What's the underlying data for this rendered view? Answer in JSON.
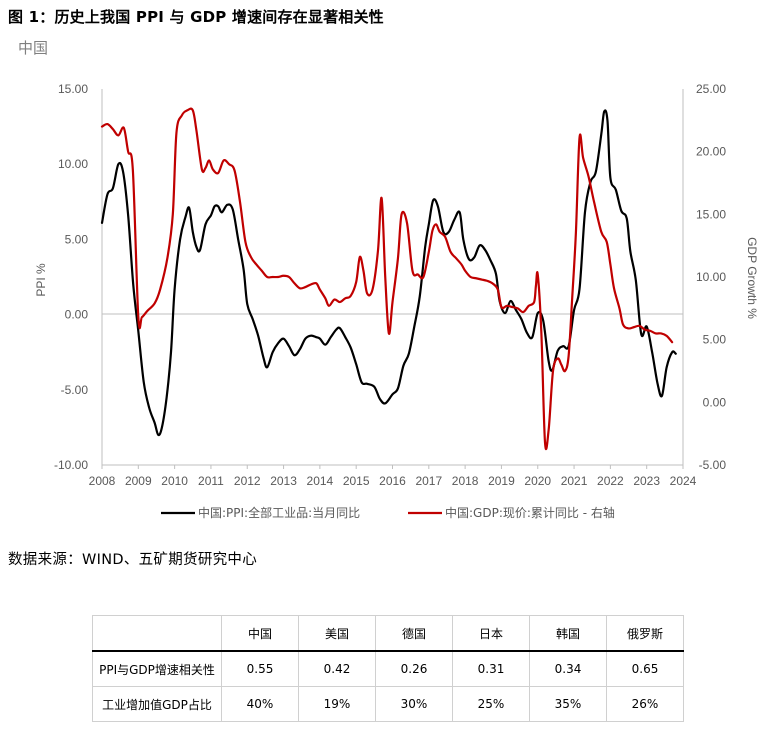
{
  "figure_title": "图 1：历史上我国 PPI 与 GDP 增速间存在显著相关性",
  "source_note": "数据来源：WIND、五矿期货研究中心",
  "chart_data": {
    "type": "line",
    "subtitle": "中国",
    "ylabel_left": "PPI %",
    "ylabel_right": "GDP Growth %",
    "ylim_left": [
      -10,
      15
    ],
    "ylim_right": [
      -5,
      25
    ],
    "y_ticks_left": [
      "15.00",
      "10.00",
      "5.00",
      "0.00",
      "-5.00",
      "-10.00"
    ],
    "y_ticks_right": [
      "25.00",
      "20.00",
      "15.00",
      "10.00",
      "5.00",
      "0.00",
      "-5.00"
    ],
    "x_ticks": [
      "2008",
      "2009",
      "2010",
      "2011",
      "2012",
      "2013",
      "2014",
      "2015",
      "2016",
      "2017",
      "2018",
      "2019",
      "2020",
      "2021",
      "2022",
      "2023",
      "2024"
    ],
    "legend_position": "bottom",
    "series": [
      {
        "name": "中国:PPI:全部工业品:当月同比",
        "axis": "left",
        "color": "#000000",
        "points": [
          [
            2008.0,
            6.1
          ],
          [
            2008.15,
            8.0
          ],
          [
            2008.3,
            8.4
          ],
          [
            2008.45,
            10.0
          ],
          [
            2008.58,
            9.5
          ],
          [
            2008.72,
            6.6
          ],
          [
            2008.86,
            2.0
          ],
          [
            2009.0,
            -1.1
          ],
          [
            2009.15,
            -4.5
          ],
          [
            2009.3,
            -6.2
          ],
          [
            2009.45,
            -7.2
          ],
          [
            2009.55,
            -8.0
          ],
          [
            2009.65,
            -7.5
          ],
          [
            2009.78,
            -5.5
          ],
          [
            2009.9,
            -2.5
          ],
          [
            2010.0,
            1.7
          ],
          [
            2010.15,
            5.0
          ],
          [
            2010.3,
            6.5
          ],
          [
            2010.4,
            7.1
          ],
          [
            2010.5,
            5.5
          ],
          [
            2010.6,
            4.5
          ],
          [
            2010.7,
            4.3
          ],
          [
            2010.85,
            6.0
          ],
          [
            2011.0,
            6.6
          ],
          [
            2011.1,
            7.2
          ],
          [
            2011.2,
            7.2
          ],
          [
            2011.3,
            6.8
          ],
          [
            2011.45,
            7.3
          ],
          [
            2011.6,
            7.0
          ],
          [
            2011.75,
            5.0
          ],
          [
            2011.9,
            3.0
          ],
          [
            2012.0,
            0.7
          ],
          [
            2012.15,
            -0.3
          ],
          [
            2012.3,
            -1.4
          ],
          [
            2012.45,
            -2.9
          ],
          [
            2012.55,
            -3.5
          ],
          [
            2012.7,
            -2.5
          ],
          [
            2012.85,
            -1.9
          ],
          [
            2013.0,
            -1.6
          ],
          [
            2013.15,
            -2.1
          ],
          [
            2013.3,
            -2.7
          ],
          [
            2013.45,
            -2.3
          ],
          [
            2013.6,
            -1.6
          ],
          [
            2013.75,
            -1.4
          ],
          [
            2013.9,
            -1.5
          ],
          [
            2014.0,
            -1.6
          ],
          [
            2014.15,
            -2.0
          ],
          [
            2014.3,
            -1.5
          ],
          [
            2014.45,
            -1.0
          ],
          [
            2014.55,
            -0.9
          ],
          [
            2014.7,
            -1.5
          ],
          [
            2014.85,
            -2.2
          ],
          [
            2015.0,
            -3.3
          ],
          [
            2015.15,
            -4.5
          ],
          [
            2015.3,
            -4.6
          ],
          [
            2015.5,
            -4.8
          ],
          [
            2015.65,
            -5.6
          ],
          [
            2015.8,
            -5.9
          ],
          [
            2016.0,
            -5.3
          ],
          [
            2016.15,
            -4.9
          ],
          [
            2016.3,
            -3.4
          ],
          [
            2016.45,
            -2.6
          ],
          [
            2016.6,
            -0.8
          ],
          [
            2016.75,
            1.2
          ],
          [
            2016.9,
            4.5
          ],
          [
            2017.0,
            6.0
          ],
          [
            2017.12,
            7.6
          ],
          [
            2017.25,
            7.2
          ],
          [
            2017.4,
            5.5
          ],
          [
            2017.55,
            5.5
          ],
          [
            2017.7,
            6.3
          ],
          [
            2017.85,
            6.8
          ],
          [
            2017.95,
            5.0
          ],
          [
            2018.1,
            3.7
          ],
          [
            2018.25,
            3.8
          ],
          [
            2018.4,
            4.6
          ],
          [
            2018.55,
            4.3
          ],
          [
            2018.7,
            3.6
          ],
          [
            2018.85,
            2.7
          ],
          [
            2018.95,
            0.9
          ],
          [
            2019.1,
            0.1
          ],
          [
            2019.25,
            0.9
          ],
          [
            2019.4,
            0.3
          ],
          [
            2019.55,
            -0.3
          ],
          [
            2019.7,
            -1.2
          ],
          [
            2019.85,
            -1.5
          ],
          [
            2020.0,
            0.1
          ],
          [
            2020.15,
            -0.4
          ],
          [
            2020.3,
            -3.1
          ],
          [
            2020.4,
            -3.7
          ],
          [
            2020.55,
            -2.4
          ],
          [
            2020.7,
            -2.1
          ],
          [
            2020.85,
            -2.1
          ],
          [
            2021.0,
            0.3
          ],
          [
            2021.15,
            1.7
          ],
          [
            2021.3,
            6.8
          ],
          [
            2021.45,
            8.8
          ],
          [
            2021.6,
            9.5
          ],
          [
            2021.75,
            12.0
          ],
          [
            2021.83,
            13.5
          ],
          [
            2021.92,
            12.9
          ],
          [
            2022.0,
            9.1
          ],
          [
            2022.15,
            8.3
          ],
          [
            2022.3,
            6.9
          ],
          [
            2022.45,
            6.4
          ],
          [
            2022.55,
            4.2
          ],
          [
            2022.7,
            2.3
          ],
          [
            2022.85,
            -1.3
          ],
          [
            2023.0,
            -0.8
          ],
          [
            2023.15,
            -2.5
          ],
          [
            2023.3,
            -4.6
          ],
          [
            2023.42,
            -5.4
          ],
          [
            2023.55,
            -3.5
          ],
          [
            2023.7,
            -2.5
          ],
          [
            2023.8,
            -2.6
          ]
        ]
      },
      {
        "name": "中国:GDP:现价:累计同比 - 右轴",
        "axis": "right",
        "color": "#c00000",
        "points": [
          [
            2008.0,
            22.0
          ],
          [
            2008.15,
            22.2
          ],
          [
            2008.3,
            21.8
          ],
          [
            2008.45,
            21.3
          ],
          [
            2008.6,
            21.9
          ],
          [
            2008.72,
            20.0
          ],
          [
            2008.85,
            18.5
          ],
          [
            2009.0,
            6.8
          ],
          [
            2009.1,
            6.8
          ],
          [
            2009.25,
            7.3
          ],
          [
            2009.45,
            7.9
          ],
          [
            2009.6,
            9.0
          ],
          [
            2009.8,
            11.5
          ],
          [
            2009.95,
            15.0
          ],
          [
            2010.05,
            21.5
          ],
          [
            2010.2,
            22.9
          ],
          [
            2010.35,
            23.3
          ],
          [
            2010.5,
            23.3
          ],
          [
            2010.6,
            21.7
          ],
          [
            2010.75,
            18.6
          ],
          [
            2010.85,
            18.7
          ],
          [
            2010.95,
            19.3
          ],
          [
            2011.05,
            18.6
          ],
          [
            2011.2,
            18.3
          ],
          [
            2011.35,
            19.3
          ],
          [
            2011.5,
            19.0
          ],
          [
            2011.65,
            18.5
          ],
          [
            2011.8,
            16.0
          ],
          [
            2011.95,
            12.8
          ],
          [
            2012.1,
            11.6
          ],
          [
            2012.25,
            11.0
          ],
          [
            2012.4,
            10.5
          ],
          [
            2012.55,
            10.0
          ],
          [
            2012.7,
            10.0
          ],
          [
            2012.85,
            10.0
          ],
          [
            2013.0,
            10.1
          ],
          [
            2013.15,
            10.0
          ],
          [
            2013.3,
            9.5
          ],
          [
            2013.45,
            9.1
          ],
          [
            2013.6,
            9.2
          ],
          [
            2013.75,
            9.4
          ],
          [
            2013.9,
            9.5
          ],
          [
            2014.0,
            9.0
          ],
          [
            2014.15,
            8.3
          ],
          [
            2014.25,
            7.7
          ],
          [
            2014.4,
            8.2
          ],
          [
            2014.55,
            8.0
          ],
          [
            2014.7,
            8.3
          ],
          [
            2014.85,
            8.5
          ],
          [
            2015.0,
            9.6
          ],
          [
            2015.1,
            11.6
          ],
          [
            2015.2,
            10.5
          ],
          [
            2015.3,
            8.7
          ],
          [
            2015.45,
            9.0
          ],
          [
            2015.6,
            12.1
          ],
          [
            2015.7,
            16.3
          ],
          [
            2015.8,
            10.0
          ],
          [
            2015.9,
            5.5
          ],
          [
            2016.0,
            8.0
          ],
          [
            2016.15,
            11.5
          ],
          [
            2016.25,
            15.0
          ],
          [
            2016.4,
            14.3
          ],
          [
            2016.55,
            10.5
          ],
          [
            2016.7,
            10.2
          ],
          [
            2016.85,
            10.0
          ],
          [
            2017.0,
            12.0
          ],
          [
            2017.1,
            13.7
          ],
          [
            2017.2,
            14.2
          ],
          [
            2017.3,
            13.6
          ],
          [
            2017.45,
            13.2
          ],
          [
            2017.6,
            12.0
          ],
          [
            2017.75,
            11.5
          ],
          [
            2017.9,
            11.0
          ],
          [
            2018.0,
            10.5
          ],
          [
            2018.15,
            10.0
          ],
          [
            2018.3,
            9.9
          ],
          [
            2018.45,
            9.8
          ],
          [
            2018.6,
            9.7
          ],
          [
            2018.75,
            9.5
          ],
          [
            2018.9,
            9.0
          ],
          [
            2019.0,
            7.6
          ],
          [
            2019.15,
            7.7
          ],
          [
            2019.3,
            7.6
          ],
          [
            2019.45,
            7.5
          ],
          [
            2019.6,
            7.2
          ],
          [
            2019.75,
            7.7
          ],
          [
            2019.9,
            8.0
          ],
          [
            2019.95,
            9.3
          ],
          [
            2020.0,
            10.2
          ],
          [
            2020.1,
            5.5
          ],
          [
            2020.2,
            -3.2
          ],
          [
            2020.3,
            -2.2
          ],
          [
            2020.42,
            2.5
          ],
          [
            2020.55,
            3.5
          ],
          [
            2020.65,
            3.0
          ],
          [
            2020.75,
            2.5
          ],
          [
            2020.85,
            3.7
          ],
          [
            2020.95,
            8.4
          ],
          [
            2021.05,
            13.5
          ],
          [
            2021.15,
            21.1
          ],
          [
            2021.25,
            19.5
          ],
          [
            2021.4,
            18.0
          ],
          [
            2021.55,
            16.0
          ],
          [
            2021.75,
            13.6
          ],
          [
            2021.9,
            12.8
          ],
          [
            2022.0,
            11.0
          ],
          [
            2022.1,
            9.1
          ],
          [
            2022.25,
            7.5
          ],
          [
            2022.35,
            6.2
          ],
          [
            2022.5,
            5.9
          ],
          [
            2022.65,
            6.0
          ],
          [
            2022.8,
            6.1
          ],
          [
            2022.95,
            5.8
          ],
          [
            2023.1,
            5.7
          ],
          [
            2023.25,
            5.5
          ],
          [
            2023.4,
            5.5
          ],
          [
            2023.55,
            5.3
          ],
          [
            2023.7,
            4.8
          ]
        ]
      }
    ]
  },
  "table": {
    "headers": [
      "",
      "中国",
      "美国",
      "德国",
      "日本",
      "韩国",
      "俄罗斯"
    ],
    "rows": [
      {
        "label": "PPI与GDP增速相关性",
        "values": [
          "0.55",
          "0.42",
          "0.26",
          "0.31",
          "0.34",
          "0.65"
        ]
      },
      {
        "label": "工业增加值GDP占比",
        "values": [
          "40%",
          "19%",
          "30%",
          "25%",
          "35%",
          "26%"
        ]
      }
    ]
  }
}
